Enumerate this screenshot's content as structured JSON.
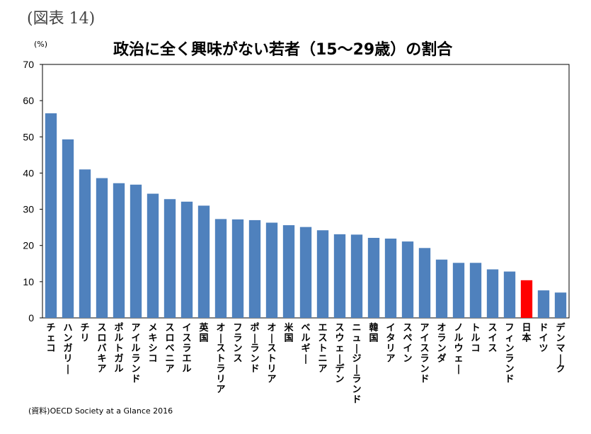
{
  "figure_label": "(図表 14)",
  "unit_label": "(%)",
  "source": "(資料)OECD Society at a Glance 2016",
  "chart_data": {
    "type": "bar",
    "title": "政治に全く興味がない若者（15～29歳）の割合",
    "xlabel": "",
    "ylabel": "(%)",
    "ylim": [
      0,
      70
    ],
    "yticks": [
      0,
      10,
      20,
      30,
      40,
      50,
      60,
      70
    ],
    "grid": false,
    "categories": [
      "チェコ",
      "ハンガリー",
      "チリ",
      "スロバキア",
      "ポルトガル",
      "アイルランド",
      "メキシコ",
      "スロベニア",
      "イスラエル",
      "英国",
      "オーストラリア",
      "フランス",
      "ポーランド",
      "オーストリア",
      "米国",
      "ベルギー",
      "エストニア",
      "スウェーデン",
      "ニュージーランド",
      "韓国",
      "イタリア",
      "スペイン",
      "アイスランド",
      "オランダ",
      "ノルウェー",
      "トルコ",
      "スイス",
      "フィンランド",
      "日本",
      "ドイツ",
      "デンマーク"
    ],
    "values": [
      56.5,
      49.3,
      41.0,
      38.6,
      37.2,
      36.8,
      34.3,
      32.8,
      32.1,
      31.0,
      27.3,
      27.2,
      27.0,
      26.3,
      25.6,
      25.1,
      24.2,
      23.1,
      23.0,
      22.1,
      21.9,
      21.1,
      19.3,
      16.1,
      15.2,
      15.2,
      13.4,
      12.8,
      10.4,
      7.6,
      7.0
    ],
    "colors": {
      "default": "#4f81bd",
      "highlight": "#ff0000"
    },
    "highlight_category": "日本"
  }
}
